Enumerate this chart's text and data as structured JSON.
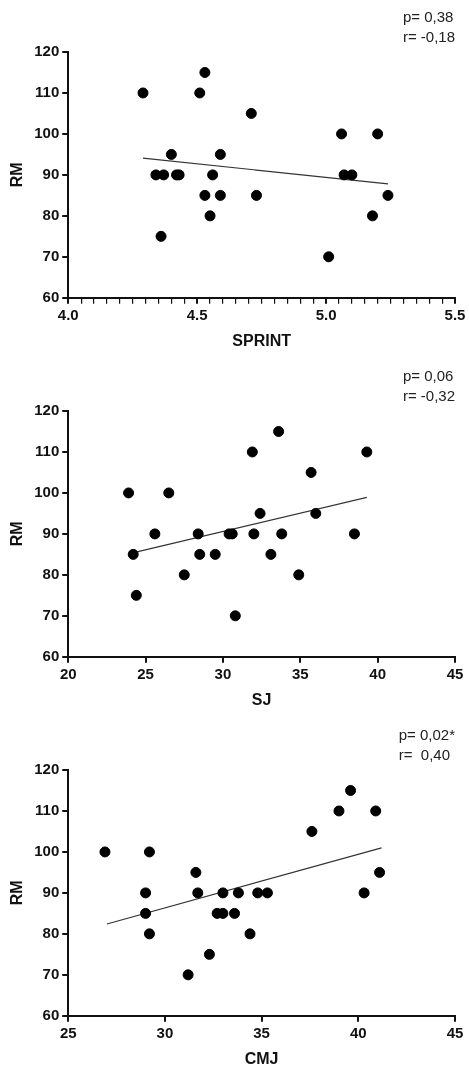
{
  "chart_data": [
    {
      "type": "scatter",
      "xlabel": "SPRINT",
      "ylabel": "RM",
      "annotations": [
        "p= 0,38",
        "r= -0,18"
      ],
      "marker": "circle",
      "xlim": [
        4,
        5.5
      ],
      "xticks": [
        {
          "value": 4,
          "label": "4.0"
        },
        {
          "value": 4.05,
          "label": null
        },
        {
          "value": 4.1,
          "label": null
        },
        {
          "value": 4.15,
          "label": null
        },
        {
          "value": 4.2,
          "label": null
        },
        {
          "value": 4.25,
          "label": null
        },
        {
          "value": 4.3,
          "label": null
        },
        {
          "value": 4.35,
          "label": null
        },
        {
          "value": 4.4,
          "label": null
        },
        {
          "value": 4.45,
          "label": null
        },
        {
          "value": 4.5,
          "label": "4.5"
        },
        {
          "value": 4.55,
          "label": null
        },
        {
          "value": 4.6,
          "label": null
        },
        {
          "value": 4.65,
          "label": null
        },
        {
          "value": 4.7,
          "label": null
        },
        {
          "value": 4.75,
          "label": null
        },
        {
          "value": 4.8,
          "label": null
        },
        {
          "value": 4.85,
          "label": null
        },
        {
          "value": 4.9,
          "label": null
        },
        {
          "value": 4.95,
          "label": null
        },
        {
          "value": 5,
          "label": "5.0"
        },
        {
          "value": 5.05,
          "label": null
        },
        {
          "value": 5.1,
          "label": null
        },
        {
          "value": 5.15,
          "label": null
        },
        {
          "value": 5.2,
          "label": null
        },
        {
          "value": 5.25,
          "label": null
        },
        {
          "value": 5.3,
          "label": null
        },
        {
          "value": 5.35,
          "label": null
        },
        {
          "value": 5.4,
          "label": null
        },
        {
          "value": 5.45,
          "label": null
        },
        {
          "value": 5.5,
          "label": "5.5"
        }
      ],
      "ylim": [
        60,
        120
      ],
      "yticks": [
        60,
        70,
        80,
        90,
        100,
        110,
        120
      ],
      "series": [
        {
          "color": "#000000",
          "x": [
            4.29,
            4.34,
            4.37,
            4.36,
            4.4,
            4.42,
            4.43,
            4.51,
            4.53,
            4.53,
            4.56,
            4.55,
            4.59,
            4.59,
            4.71,
            4.73,
            5.01,
            5.06,
            5.07,
            5.1,
            5.2,
            5.18,
            5.24
          ],
          "values": [
            110,
            90,
            90,
            75,
            95,
            90,
            90,
            110,
            115,
            85,
            90,
            80,
            95,
            85,
            105,
            85,
            70,
            100,
            90,
            90,
            100,
            80,
            85
          ]
        },
        {
          "type": "line",
          "marker": "none",
          "color": "#333333",
          "x": [
            4.29,
            5.24
          ],
          "values": [
            94.1,
            87.8
          ]
        }
      ]
    },
    {
      "type": "scatter",
      "xlabel": "SJ",
      "ylabel": "RM",
      "annotations": [
        "p= 0,06",
        "r= -0,32"
      ],
      "marker": "circle",
      "xlim": [
        20,
        45
      ],
      "xticks": [
        20,
        25,
        30,
        35,
        40,
        45
      ],
      "ylim": [
        60,
        120
      ],
      "yticks": [
        60,
        70,
        80,
        90,
        100,
        110,
        120
      ],
      "series": [
        {
          "color": "#000000",
          "x": [
            23.9,
            24.2,
            24.4,
            25.6,
            26.5,
            27.5,
            28.4,
            28.5,
            29.5,
            30.4,
            30.6,
            30.8,
            31.9,
            32,
            32.4,
            33.1,
            33.6,
            33.8,
            34.9,
            35.7,
            36,
            38.5,
            39.3
          ],
          "values": [
            100,
            85,
            75,
            90,
            100,
            80,
            90,
            85,
            85,
            90,
            90,
            70,
            110,
            90,
            95,
            85,
            115,
            90,
            80,
            105,
            95,
            90,
            110
          ]
        },
        {
          "type": "line",
          "marker": "none",
          "color": "#333333",
          "x": [
            24.3,
            39.3
          ],
          "values": [
            85.5,
            98.9
          ]
        }
      ]
    },
    {
      "type": "scatter",
      "xlabel": "CMJ",
      "ylabel": "RM",
      "annotations": [
        "p= 0,02*",
        "r=  0,40"
      ],
      "marker": "circle",
      "xlim": [
        25,
        45
      ],
      "xticks": [
        25,
        30,
        35,
        40,
        45
      ],
      "ylim": [
        60,
        120
      ],
      "yticks": [
        60,
        70,
        80,
        90,
        100,
        110,
        120
      ],
      "series": [
        {
          "color": "#000000",
          "x": [
            26.9,
            29,
            29,
            29.2,
            29.2,
            31.2,
            31.6,
            31.7,
            32.3,
            32.7,
            33,
            33,
            33.6,
            33.8,
            34.4,
            34.8,
            35.3,
            37.6,
            39,
            39.6,
            40.3,
            40.9,
            41.1
          ],
          "values": [
            100,
            90,
            85,
            80,
            100,
            70,
            95,
            90,
            75,
            85,
            85,
            90,
            85,
            90,
            80,
            90,
            90,
            105,
            110,
            115,
            90,
            110,
            95
          ]
        },
        {
          "type": "line",
          "marker": "none",
          "color": "#333333",
          "x": [
            27,
            41.2
          ],
          "values": [
            82.4,
            101
          ]
        }
      ]
    }
  ]
}
